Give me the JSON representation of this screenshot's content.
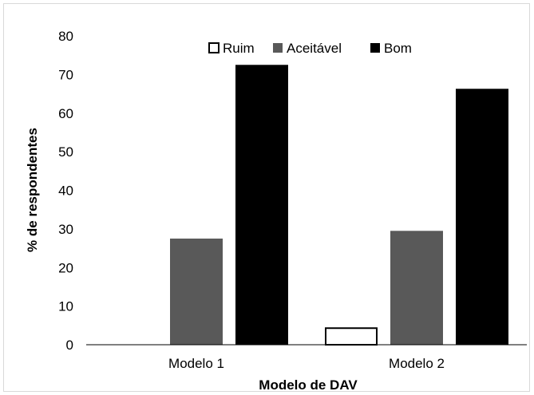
{
  "chart_data": {
    "type": "bar",
    "title": "",
    "xlabel": "Modelo de DAV",
    "ylabel": "% de respondentes",
    "categories": [
      "Modelo 1",
      "Modelo 2"
    ],
    "series": [
      {
        "name": "Ruim",
        "values": [
          0,
          4.5
        ],
        "color": "#ffffff",
        "stroke": "#000000"
      },
      {
        "name": "Aceitável",
        "values": [
          27.5,
          29.5
        ],
        "color": "#595959",
        "stroke": "#595959"
      },
      {
        "name": "Bom",
        "values": [
          72.5,
          66.3
        ],
        "color": "#000000",
        "stroke": "#000000"
      }
    ],
    "ylim": [
      0,
      80
    ],
    "yticks": [
      "0",
      "10",
      "20",
      "30",
      "40",
      "50",
      "60",
      "70",
      "80"
    ],
    "grid": false,
    "legend_position": "top"
  }
}
